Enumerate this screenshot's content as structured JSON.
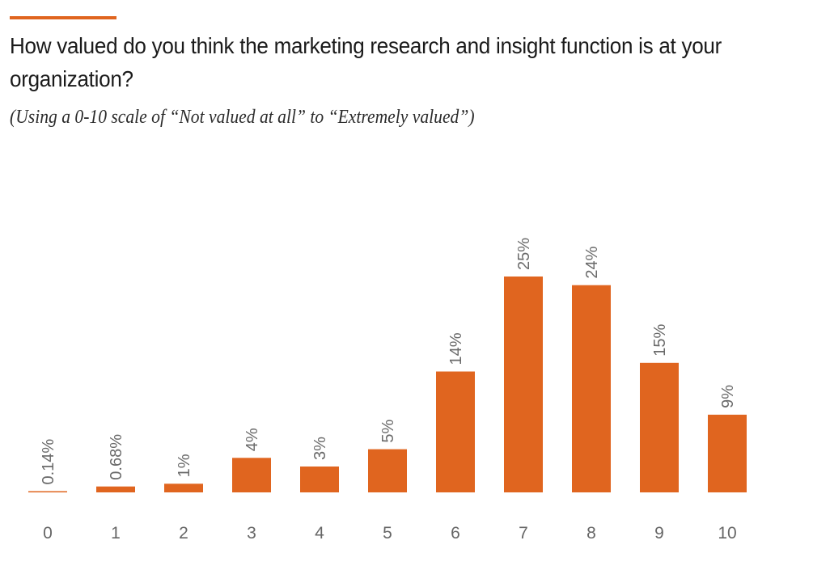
{
  "title": "How valued do you think the marketing research and insight function is at your organization?",
  "subtitle": "(Using a 0-10 scale of “Not valued at all” to “Extremely valued”)",
  "colors": {
    "accent": "#e0651f",
    "bar": "#e0651f",
    "text": "#1a1a1a",
    "labels": "#6a6a6a"
  },
  "chart_data": {
    "type": "bar",
    "categories": [
      "0",
      "1",
      "2",
      "3",
      "4",
      "5",
      "6",
      "7",
      "8",
      "9",
      "10"
    ],
    "values": [
      0.14,
      0.68,
      1,
      4,
      3,
      5,
      14,
      25,
      24,
      15,
      9
    ],
    "data_labels": [
      "0.14%",
      "0.68%",
      "1%",
      "4%",
      "3%",
      "5%",
      "14%",
      "25%",
      "24%",
      "15%",
      "9%"
    ],
    "xlabel": "",
    "ylabel": "",
    "ylim": [
      0,
      25
    ],
    "grid": false,
    "legend": "none"
  }
}
